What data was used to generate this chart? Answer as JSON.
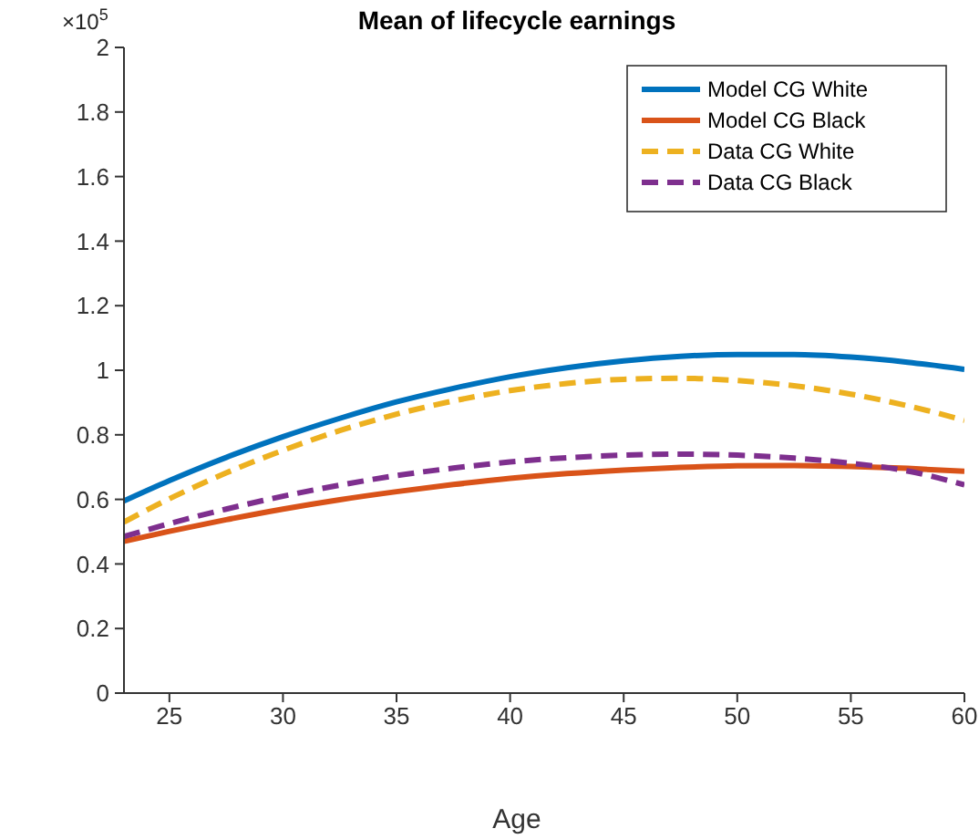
{
  "chart_data": {
    "type": "line",
    "title": "Mean of lifecycle earnings",
    "xlabel": "Age",
    "annotations": [
      "×10$^{5}$"
    ],
    "x": [
      23,
      25,
      27.5,
      30,
      32.5,
      35,
      37.5,
      40,
      42.5,
      45,
      47.5,
      50,
      52.5,
      55,
      57.5,
      60
    ],
    "series": [
      {
        "name": "Model CG White",
        "color": "#0072bd",
        "line_style": "solid",
        "values": [
          0.595,
          0.658,
          0.73,
          0.794,
          0.851,
          0.902,
          0.944,
          0.98,
          1.008,
          1.029,
          1.043,
          1.049,
          1.049,
          1.041,
          1.025,
          1.003
        ]
      },
      {
        "name": "Model CG Black",
        "color": "#d95319",
        "line_style": "solid",
        "values": [
          0.47,
          0.501,
          0.537,
          0.57,
          0.599,
          0.624,
          0.646,
          0.665,
          0.68,
          0.691,
          0.699,
          0.704,
          0.705,
          0.702,
          0.696,
          0.687
        ]
      },
      {
        "name": "Data CG White",
        "color": "#edb120",
        "line_style": "dashed",
        "values": [
          0.53,
          0.602,
          0.682,
          0.752,
          0.813,
          0.864,
          0.905,
          0.937,
          0.959,
          0.972,
          0.975,
          0.968,
          0.952,
          0.926,
          0.89,
          0.845
        ]
      },
      {
        "name": "Data CG Black",
        "color": "#7e2f8e",
        "line_style": "dashed",
        "values": [
          0.485,
          0.525,
          0.57,
          0.61,
          0.644,
          0.674,
          0.697,
          0.716,
          0.729,
          0.737,
          0.74,
          0.737,
          0.728,
          0.712,
          0.688,
          0.645
        ]
      }
    ],
    "xlim": [
      23,
      60
    ],
    "xticks": [
      25,
      30,
      35,
      40,
      45,
      50,
      55,
      60
    ],
    "ylim": [
      0,
      2
    ],
    "yticks": [
      0,
      0.2,
      0.4,
      0.6,
      0.8,
      1,
      1.2,
      1.4,
      1.6,
      1.8,
      2
    ],
    "grid": false,
    "legend": "top right",
    "marker": "none"
  }
}
